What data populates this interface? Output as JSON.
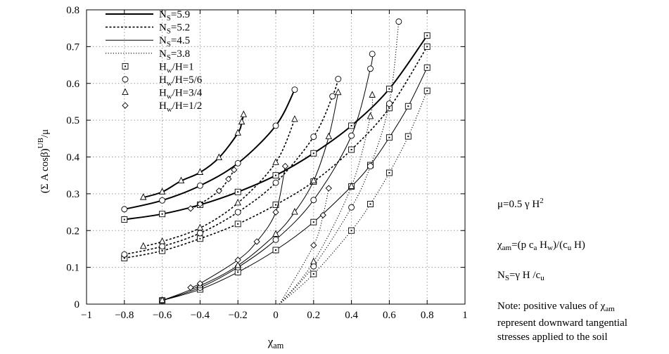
{
  "chart_data": {
    "type": "line",
    "xlabel": "χ_am",
    "ylabel": "(Σ A cosβ)^UB/μ",
    "xlim": [
      -1,
      1
    ],
    "ylim": [
      0,
      0.8
    ],
    "x_ticks": [
      "−1",
      "−0.8",
      "−0.6",
      "−0.4",
      "−0.2",
      "0",
      "0.2",
      "0.4",
      "0.6",
      "0.8",
      "1"
    ],
    "y_ticks": [
      "0",
      "0.1",
      "0.2",
      "0.3",
      "0.4",
      "0.5",
      "0.6",
      "0.7",
      "0.8"
    ],
    "grid": true,
    "legend_position": "top-left",
    "legend": [
      {
        "label": "N_S=5.9",
        "kind": "line",
        "style": "thick-solid"
      },
      {
        "label": "N_S=5.2",
        "kind": "line",
        "style": "dashed"
      },
      {
        "label": "N_S=4.5",
        "kind": "line",
        "style": "thin-solid"
      },
      {
        "label": "N_S=3.8",
        "kind": "line",
        "style": "dotted"
      },
      {
        "label": "H_w/H=1",
        "kind": "marker",
        "marker": "square"
      },
      {
        "label": "H_w/H=5/6",
        "kind": "marker",
        "marker": "circle"
      },
      {
        "label": "H_w/H=3/4",
        "kind": "marker",
        "marker": "triangle"
      },
      {
        "label": "H_w/H=1/2",
        "kind": "marker",
        "marker": "diamond"
      }
    ],
    "series": [
      {
        "ns": "5.9",
        "hw": "1",
        "x": [
          -0.8,
          -0.6,
          -0.4,
          -0.2,
          0,
          0.2,
          0.4,
          0.6,
          0.8
        ],
        "y": [
          0.23,
          0.245,
          0.27,
          0.305,
          0.35,
          0.41,
          0.485,
          0.585,
          0.73
        ]
      },
      {
        "ns": "5.9",
        "hw": "5/6",
        "x": [
          -0.8,
          -0.6,
          -0.4,
          -0.2,
          0,
          0.1
        ],
        "y": [
          0.258,
          0.282,
          0.322,
          0.383,
          0.485,
          0.583
        ]
      },
      {
        "ns": "5.9",
        "hw": "3/4",
        "x": [
          -0.7,
          -0.6,
          -0.5,
          -0.4,
          -0.3,
          -0.2,
          -0.18,
          -0.17
        ],
        "y": [
          0.29,
          0.305,
          0.335,
          0.358,
          0.398,
          0.465,
          0.495,
          0.515
        ]
      },
      {
        "ns": "5.2",
        "hw": "1",
        "x": [
          -0.8,
          -0.6,
          -0.4,
          -0.2,
          0,
          0.2,
          0.4,
          0.6,
          0.8
        ],
        "y": [
          0.125,
          0.145,
          0.178,
          0.218,
          0.27,
          0.333,
          0.42,
          0.533,
          0.7
        ]
      },
      {
        "ns": "5.2",
        "hw": "5/6",
        "x": [
          -0.8,
          -0.6,
          -0.4,
          -0.2,
          0,
          0.2,
          0.3,
          0.33
        ],
        "y": [
          0.135,
          0.157,
          0.193,
          0.25,
          0.33,
          0.455,
          0.565,
          0.612
        ]
      },
      {
        "ns": "5.2",
        "hw": "3/4",
        "x": [
          -0.7,
          -0.6,
          -0.4,
          -0.2,
          0,
          0.1
        ],
        "y": [
          0.157,
          0.17,
          0.207,
          0.275,
          0.385,
          0.502
        ]
      },
      {
        "ns": "5.2",
        "hw": "1/2",
        "x": [
          -0.45,
          -0.4,
          -0.3,
          -0.25,
          -0.22
        ],
        "y": [
          0.26,
          0.272,
          0.308,
          0.34,
          0.365
        ]
      },
      {
        "ns": "4.5",
        "hw": "1",
        "x": [
          -0.6,
          -0.4,
          -0.2,
          0,
          0.2,
          0.4,
          0.5,
          0.6,
          0.7,
          0.8
        ],
        "y": [
          0.01,
          0.04,
          0.087,
          0.147,
          0.223,
          0.32,
          0.378,
          0.453,
          0.538,
          0.643
        ]
      },
      {
        "ns": "4.5",
        "hw": "5/6",
        "x": [
          -0.6,
          -0.4,
          -0.2,
          0,
          0.2,
          0.4,
          0.5,
          0.51
        ],
        "y": [
          0.01,
          0.045,
          0.1,
          0.175,
          0.283,
          0.458,
          0.64,
          0.68
        ]
      },
      {
        "ns": "4.5",
        "hw": "3/4",
        "x": [
          -0.6,
          -0.4,
          -0.2,
          0,
          0.1,
          0.2,
          0.28,
          0.33
        ],
        "y": [
          0.01,
          0.05,
          0.105,
          0.19,
          0.25,
          0.335,
          0.455,
          0.575
        ]
      },
      {
        "ns": "4.5",
        "hw": "1/2",
        "x": [
          -0.45,
          -0.4,
          -0.2,
          -0.1,
          0,
          0.05
        ],
        "y": [
          0.045,
          0.056,
          0.12,
          0.17,
          0.25,
          0.375
        ]
      },
      {
        "ns": "3.8",
        "hw": "1",
        "x": [
          0.02,
          0.2,
          0.4,
          0.5,
          0.6,
          0.7,
          0.8
        ],
        "y": [
          0.0,
          0.082,
          0.2,
          0.272,
          0.357,
          0.456,
          0.58
        ]
      },
      {
        "ns": "3.8",
        "hw": "5/6",
        "x": [
          0.02,
          0.2,
          0.4,
          0.5,
          0.6,
          0.65
        ],
        "y": [
          0.0,
          0.103,
          0.263,
          0.375,
          0.545,
          0.768
        ]
      },
      {
        "ns": "3.8",
        "hw": "3/4",
        "x": [
          0.02,
          0.2,
          0.4,
          0.5,
          0.51
        ],
        "y": [
          0.0,
          0.115,
          0.32,
          0.51,
          0.568
        ]
      },
      {
        "ns": "3.8",
        "hw": "1/2",
        "x": [
          0.02,
          0.2,
          0.25,
          0.28
        ],
        "y": [
          0.0,
          0.16,
          0.242,
          0.315
        ]
      }
    ]
  },
  "side_text": {
    "mu_def": {
      "main": "μ=0.5 γ H",
      "sup": "2"
    },
    "chi_def": {
      "sym": "χ",
      "sub": "am",
      "eq": "=(p c",
      "sub_a": "a",
      "mid": " H",
      "sub_w": "w",
      "end": ")/(c",
      "sub_u": "u",
      "tail": " H)"
    },
    "ns_def": {
      "sym": "N",
      "sub": "S",
      "eq": "=γ H /c",
      "sub_u": "u"
    },
    "note": {
      "line_a": "Note: positive values of ",
      "sym": "χ",
      "sub": "am",
      "line_b": "represent downward tangential",
      "line_c": "stresses applied to the soil"
    }
  }
}
